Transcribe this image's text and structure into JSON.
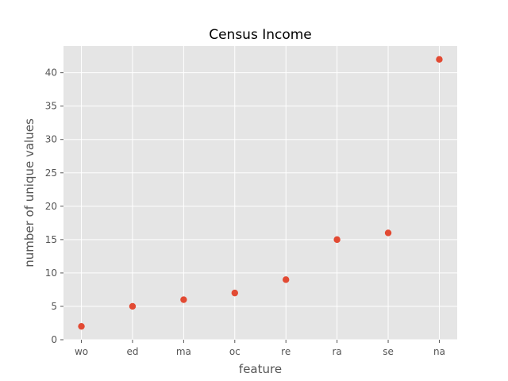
{
  "chart_data": {
    "type": "scatter",
    "title": "Census Income",
    "xlabel": "feature",
    "ylabel": "number of unique values",
    "categories": [
      "wo",
      "ed",
      "ma",
      "oc",
      "re",
      "ra",
      "se",
      "na"
    ],
    "values": [
      2,
      5,
      6,
      7,
      9,
      15,
      16,
      42
    ],
    "ylim": [
      0,
      44
    ],
    "yticks": [
      0,
      5,
      10,
      15,
      20,
      25,
      30,
      35,
      40
    ],
    "grid": true,
    "style": "ggplot",
    "colors": {
      "background": "#e5e5e5",
      "grid": "#ffffff",
      "marker": "#e24a33",
      "tick_text": "#555555"
    }
  }
}
